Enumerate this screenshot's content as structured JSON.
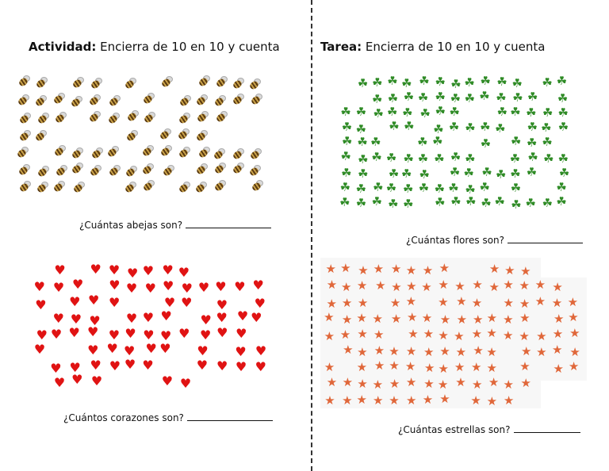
{
  "left": {
    "heading_label": "Actividad:",
    "heading_text": " Encierra de 10 en 10 y cuenta",
    "q1": "¿Cuántas abejas son?",
    "q2": "¿Cuántos corazones son?",
    "bees_icon": "bee-icon",
    "hearts_icon": "heart-icon"
  },
  "right": {
    "heading_label": "Tarea:",
    "heading_text": " Encierra de 10 en 10 y cuenta",
    "q1": "¿Cuántas flores son?",
    "q2": "¿Cuántas estrellas son?",
    "clovers_icon": "clover-icon",
    "stars_icon": "star-icon"
  },
  "colors": {
    "heart": "#e01313",
    "clover": "#2f8b26",
    "star": "#e0673a"
  }
}
